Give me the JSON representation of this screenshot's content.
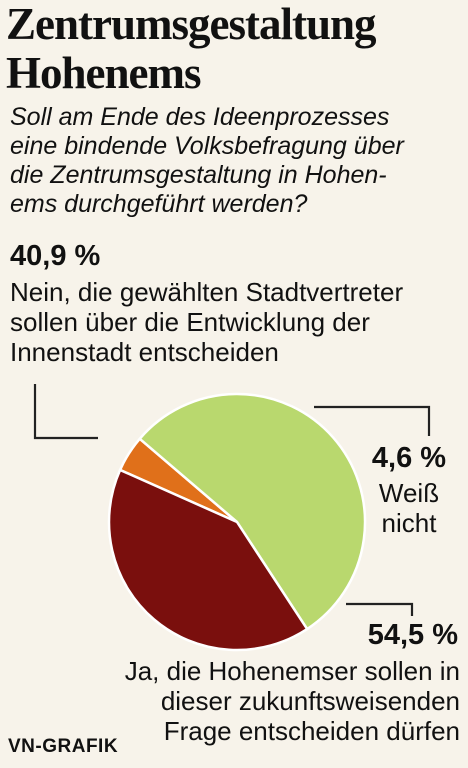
{
  "title_lines": [
    "Zentrumsgestaltung",
    "Hohenems"
  ],
  "question_lines": [
    "Soll am Ende des Ideenprozesses",
    "eine bindende Volksbefragung über",
    "die Zentrumsgestaltung in Hohen-",
    "ems durchgeführt werden?"
  ],
  "chart_data": {
    "type": "pie",
    "slices": [
      {
        "key": "weiss",
        "value": 4.6,
        "value_label": "4,6 %",
        "label_lines": [
          "Weiß",
          "nicht"
        ],
        "color": "#e0701a"
      },
      {
        "key": "ja",
        "value": 54.5,
        "value_label": "54,5 %",
        "label_lines": [
          "Ja, die Hohenemser sollen in",
          "dieser zukunftsweisenden",
          "Frage entscheiden dürfen"
        ],
        "color": "#b9d86e"
      },
      {
        "key": "nein",
        "value": 40.9,
        "value_label": "40,9 %",
        "label_lines": [
          "Nein, die gewählten Stadtvertreter",
          "sollen über die Entwicklung der",
          "Innenstadt entscheiden"
        ],
        "color": "#7a0f0d"
      }
    ]
  },
  "credit": "VN-GRAFIK"
}
